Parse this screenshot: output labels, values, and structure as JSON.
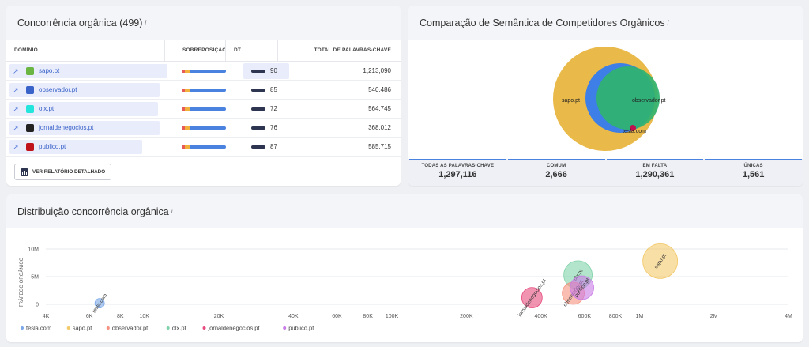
{
  "organic": {
    "title": "Concorrência orgânica (499)",
    "info": "i",
    "headers": {
      "domain": "DOMÍNIO",
      "overlap": "SOBREPOSIÇÃO",
      "dt": "DT",
      "total": "TOTAL DE PALAVRAS-CHAVE"
    },
    "rows": [
      {
        "domain": "sapo.pt",
        "dt": "90",
        "total": "1,213,090",
        "favicon_color": "#6bb543"
      },
      {
        "domain": "observador.pt",
        "dt": "85",
        "total": "540,486",
        "favicon_color": "#3a63c9"
      },
      {
        "domain": "olx.pt",
        "dt": "72",
        "total": "564,745",
        "favicon_color": "#23e5db"
      },
      {
        "domain": "jornaldenegocios.pt",
        "dt": "76",
        "total": "368,012",
        "favicon_color": "#222222"
      },
      {
        "domain": "publico.pt",
        "dt": "87",
        "total": "585,715",
        "favicon_color": "#c0121b"
      }
    ],
    "report_button": "VER RELATÓRIO DETALHADO"
  },
  "semantic": {
    "title": "Comparação de Semântica de Competidores Orgânicos",
    "info": "i",
    "venn_labels": {
      "a": "sapo.pt",
      "b": "observador.pt",
      "c": "tesla.com"
    },
    "stats": [
      {
        "label": "TODAS AS PALAVRAS-CHAVE",
        "value": "1,297,116"
      },
      {
        "label": "COMUM",
        "value": "2,666"
      },
      {
        "label": "EM FALTA",
        "value": "1,290,361"
      },
      {
        "label": "ÚNICAS",
        "value": "1,561"
      }
    ]
  },
  "distribution": {
    "title": "Distribuição concorrência orgânica",
    "info": "i",
    "chart_data": {
      "type": "scatter",
      "ylabel": "TRÁFEGO ORGÂNICO",
      "x_scale": "log",
      "x_ticks": [
        "4K",
        "6K",
        "8K",
        "10K",
        "20K",
        "40K",
        "60K",
        "80K",
        "100K",
        "200K",
        "400K",
        "600K",
        "800K",
        "1M",
        "2M",
        "4M"
      ],
      "x_tick_values": [
        4000,
        6000,
        8000,
        10000,
        20000,
        40000,
        60000,
        80000,
        100000,
        200000,
        400000,
        600000,
        800000,
        1000000,
        2000000,
        4000000
      ],
      "y_ticks": [
        "10M",
        "5M",
        "0"
      ],
      "y_tick_values": [
        10000000,
        5000000,
        0
      ],
      "ylim": [
        0,
        10000000
      ],
      "series": [
        {
          "name": "tesla.com",
          "color": "#7aa7e8",
          "x": 6600,
          "y": 200000
        },
        {
          "name": "sapo.pt",
          "color": "#f3c969",
          "x": 1213090,
          "y": 7800000
        },
        {
          "name": "observador.pt",
          "color": "#f5917f",
          "x": 540486,
          "y": 2000000
        },
        {
          "name": "olx.pt",
          "color": "#7fd3a8",
          "x": 564745,
          "y": 5300000
        },
        {
          "name": "jornaldenegocios.pt",
          "color": "#e84d7f",
          "x": 368012,
          "y": 1200000
        },
        {
          "name": "publico.pt",
          "color": "#c97be6",
          "x": 585715,
          "y": 3000000
        }
      ]
    }
  }
}
